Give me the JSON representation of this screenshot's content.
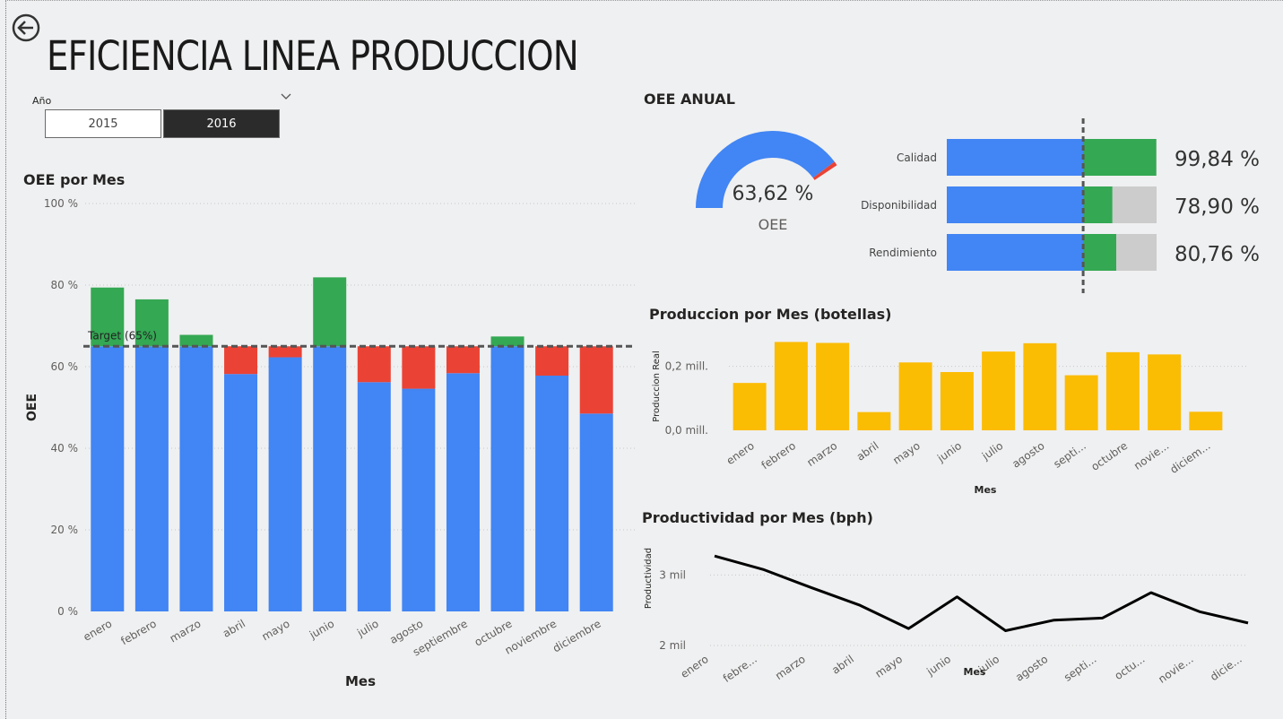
{
  "page": {
    "title": "EFICIENCIA LINEA PRODUCCION"
  },
  "slicer": {
    "label": "Año",
    "options": [
      "2015",
      "2016"
    ],
    "selected": "2016"
  },
  "colors": {
    "blue": "#4285f4",
    "green": "#34a853",
    "red": "#ea4335",
    "yellow": "#fbbc04",
    "gray": "#cccccc",
    "black": "#000000"
  },
  "oee_por_mes": {
    "title": "OEE por Mes",
    "chart_data": {
      "type": "bar",
      "stacked": true,
      "categories": [
        "enero",
        "febrero",
        "marzo",
        "abril",
        "mayo",
        "junio",
        "julio",
        "agosto",
        "septiembre",
        "octubre",
        "noviembre",
        "diciembre"
      ],
      "oee": [
        79.4,
        76.5,
        67.8,
        58.2,
        62.3,
        81.9,
        56.2,
        54.6,
        58.4,
        67.4,
        57.8,
        48.5
      ],
      "target": 65,
      "target_label": "Target (65%)",
      "ylabel": "OEE",
      "xlabel": "Mes",
      "ylim": [
        0,
        100
      ],
      "yticks": [
        "0 %",
        "20 %",
        "40 %",
        "60 %",
        "80 %",
        "100 %"
      ],
      "colors": {
        "base": "#4285f4",
        "above_target": "#34a853",
        "below_target": "#ea4335"
      }
    }
  },
  "oee_anual": {
    "title": "OEE ANUAL",
    "gauge": {
      "value": 63.62,
      "value_label": "63,62 %",
      "label": "OEE",
      "target": 65
    },
    "bars": [
      {
        "label": "Calidad",
        "value": 99.84,
        "value_label": "99,84 %"
      },
      {
        "label": "Disponibilidad",
        "value": 78.9,
        "value_label": "78,90 %"
      },
      {
        "label": "Rendimiento",
        "value": 80.76,
        "value_label": "80,76 %"
      }
    ],
    "bar_target": 65
  },
  "produccion_por_mes": {
    "title": "Produccion por Mes (botellas)",
    "chart_data": {
      "type": "bar",
      "categories": [
        "enero",
        "febrero",
        "marzo",
        "abril",
        "mayo",
        "junio",
        "julio",
        "agosto",
        "septi...",
        "octubre",
        "novie...",
        "diciem..."
      ],
      "values": [
        148000,
        276000,
        273000,
        57000,
        212000,
        182000,
        246000,
        272000,
        172000,
        244000,
        237000,
        58000
      ],
      "ylabel": "Produccion Real",
      "xlabel": "Mes",
      "ylim": [
        0,
        280000
      ],
      "yticks": [
        "0,0 mill.",
        "0,2 mill."
      ]
    }
  },
  "productividad_por_mes": {
    "title": "Productividad por Mes (bph)",
    "chart_data": {
      "type": "line",
      "categories": [
        "enero",
        "febre...",
        "marzo",
        "abril",
        "mayo",
        "junio",
        "julio",
        "agosto",
        "septi...",
        "octu...",
        "novie...",
        "dicie..."
      ],
      "values": [
        3270,
        3080,
        2820,
        2570,
        2240,
        2690,
        2210,
        2360,
        2390,
        2750,
        2480,
        2320
      ],
      "ylabel": "Productividad",
      "xlabel": "Mes",
      "ylim": [
        2000,
        3400
      ],
      "yticks": [
        "2 mil",
        "3 mil"
      ]
    }
  }
}
